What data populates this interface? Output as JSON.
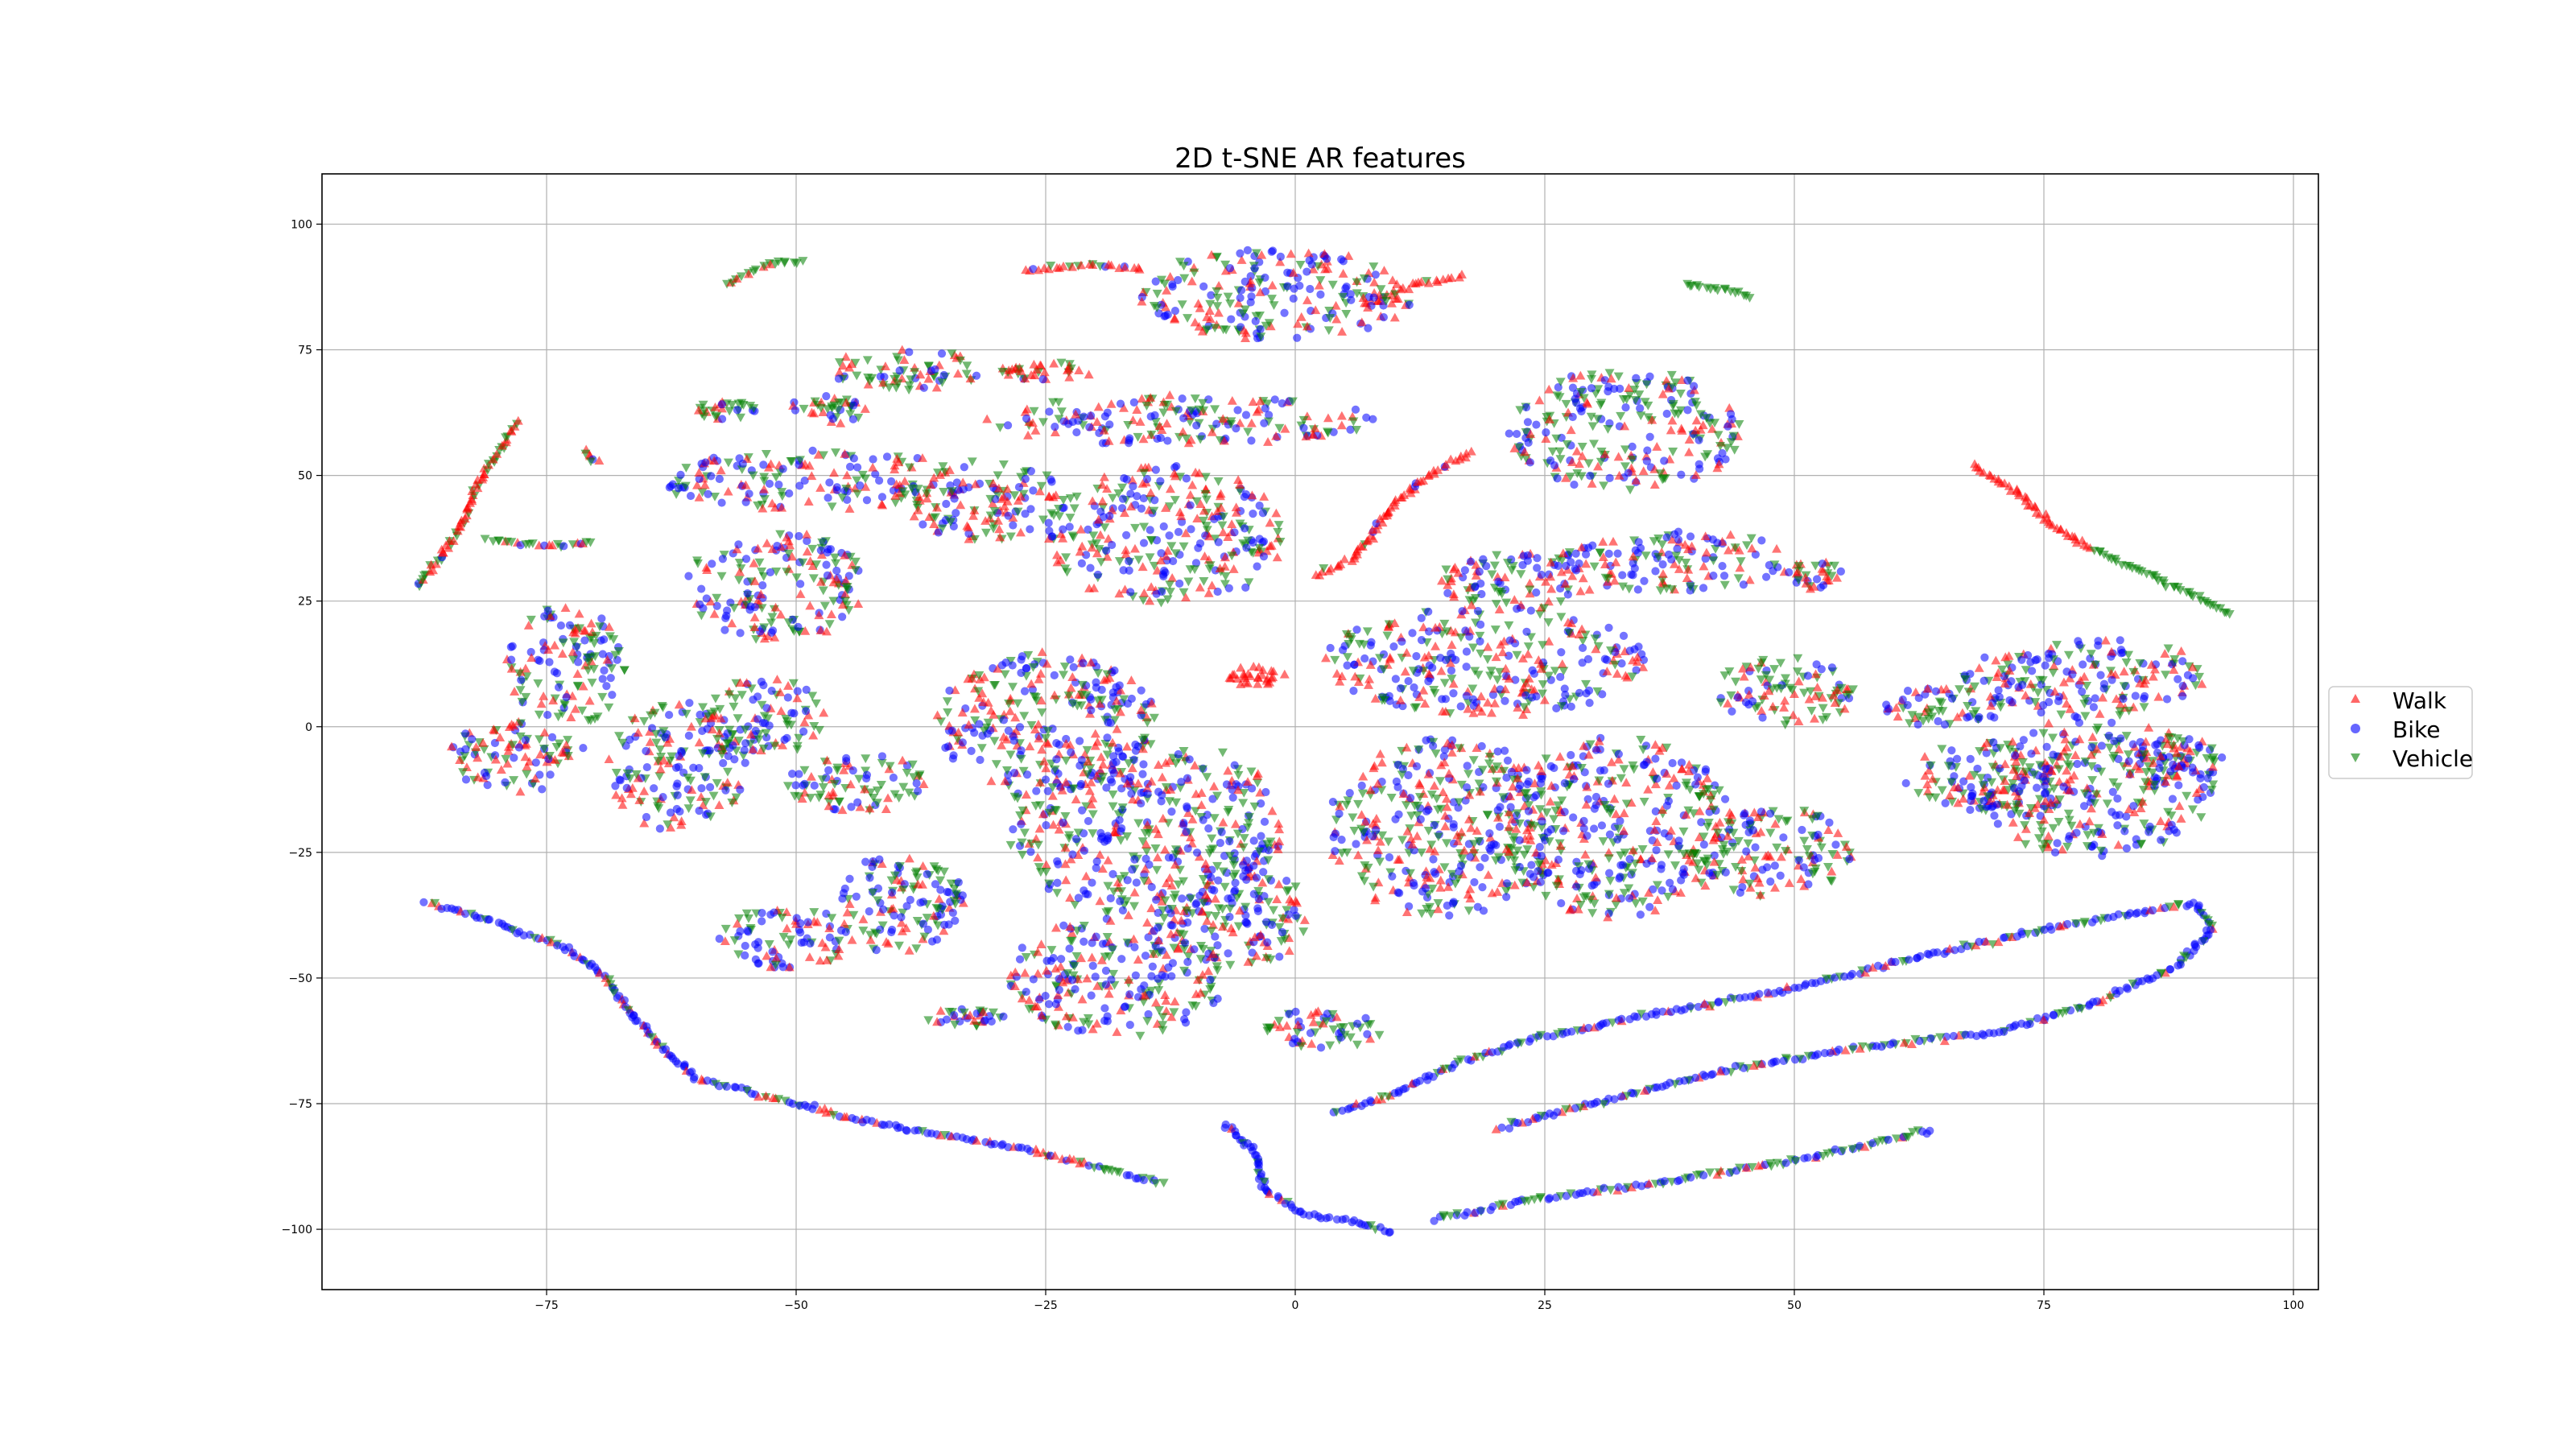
{
  "chart_data": {
    "type": "scatter",
    "title": "2D t-SNE AR features",
    "xlabel": "",
    "ylabel": "",
    "xlim": [
      -97.5,
      102.5
    ],
    "ylim": [
      -112,
      110
    ],
    "x_ticks": [
      -75,
      -50,
      -25,
      0,
      25,
      50,
      75,
      100
    ],
    "x_tick_labels": [
      "−75",
      "−50",
      "−25",
      "0",
      "25",
      "50",
      "75",
      "100"
    ],
    "y_ticks": [
      100,
      75,
      50,
      25,
      0,
      -25,
      -50,
      -75,
      -100
    ],
    "y_tick_labels": [
      "100",
      "75",
      "50",
      "25",
      "0",
      "−25",
      "−50",
      "−75",
      "−100"
    ],
    "grid": true,
    "legend_placement": "center-right outside",
    "series": [
      {
        "name": "Walk",
        "marker": "triangle-up",
        "color": "#ff0000"
      },
      {
        "name": "Bike",
        "marker": "circle",
        "color": "#0000ff"
      },
      {
        "name": "Vehicle",
        "marker": "triangle-down",
        "color": "#008000"
      }
    ],
    "curves": [
      {
        "pts": [
          [
            -87,
            -35
          ],
          [
            -80,
            -39
          ],
          [
            -73,
            -44
          ],
          [
            -69,
            -50
          ],
          [
            -67,
            -56
          ],
          [
            -64,
            -63
          ],
          [
            -60,
            -70
          ],
          [
            -52,
            -74
          ],
          [
            -44,
            -78
          ],
          [
            -36,
            -81
          ],
          [
            -27,
            -84
          ],
          [
            -19,
            -88
          ],
          [
            -13,
            -91
          ]
        ],
        "mix": [
          0.2,
          0.65,
          0.15
        ]
      },
      {
        "pts": [
          [
            -7,
            -79
          ],
          [
            -4,
            -85
          ],
          [
            -3,
            -92
          ],
          [
            1,
            -97
          ],
          [
            7,
            -99
          ],
          [
            10,
            -101
          ]
        ],
        "mix": [
          0.05,
          0.85,
          0.1
        ]
      },
      {
        "pts": [
          [
            4,
            -77
          ],
          [
            10,
            -73
          ],
          [
            16,
            -67
          ],
          [
            24,
            -62
          ],
          [
            36,
            -57
          ],
          [
            48,
            -53
          ],
          [
            62,
            -46
          ],
          [
            76,
            -40
          ],
          [
            90,
            -35
          ],
          [
            92,
            -40
          ],
          [
            88,
            -48
          ],
          [
            80,
            -55
          ],
          [
            70,
            -61
          ],
          [
            56,
            -64
          ],
          [
            44,
            -68
          ],
          [
            32,
            -74
          ],
          [
            20,
            -80
          ]
        ],
        "mix": [
          0.15,
          0.6,
          0.25
        ]
      },
      {
        "pts": [
          [
            14,
            -98
          ],
          [
            24,
            -94
          ],
          [
            36,
            -91
          ],
          [
            48,
            -87
          ],
          [
            56,
            -84
          ],
          [
            64,
            -80
          ]
        ],
        "mix": [
          0.1,
          0.5,
          0.4
        ]
      },
      {
        "pts": [
          [
            -88,
            28
          ],
          [
            -84,
            38
          ],
          [
            -82,
            48
          ],
          [
            -79,
            57
          ],
          [
            -78,
            61
          ]
        ],
        "mix": [
          0.6,
          0.05,
          0.35
        ]
      },
      {
        "pts": [
          [
            2,
            30
          ],
          [
            6,
            34
          ],
          [
            9,
            42
          ],
          [
            12,
            48
          ],
          [
            14,
            51
          ],
          [
            18,
            55
          ]
        ],
        "mix": [
          0.9,
          0.05,
          0.05
        ]
      },
      {
        "pts": [
          [
            -27,
            91
          ],
          [
            -20,
            92
          ],
          [
            -15,
            91
          ]
        ],
        "mix": [
          0.85,
          0.05,
          0.1
        ]
      },
      {
        "pts": [
          [
            7,
            84
          ],
          [
            12,
            88
          ],
          [
            17,
            90
          ]
        ],
        "mix": [
          0.85,
          0.05,
          0.1
        ]
      },
      {
        "pts": [
          [
            39,
            88
          ],
          [
            43,
            87
          ],
          [
            46,
            85
          ]
        ],
        "mix": [
          0,
          0,
          1
        ]
      },
      {
        "pts": [
          [
            68,
            52
          ],
          [
            72,
            47
          ],
          [
            76,
            40
          ],
          [
            80,
            35
          ]
        ],
        "mix": [
          1,
          0,
          0
        ]
      },
      {
        "pts": [
          [
            80,
            35
          ],
          [
            86,
            30
          ],
          [
            91,
            25
          ],
          [
            94,
            22
          ]
        ],
        "mix": [
          0,
          0,
          1
        ]
      },
      {
        "pts": [
          [
            -57,
            88
          ],
          [
            -53,
            92
          ],
          [
            -49,
            93
          ]
        ],
        "mix": [
          0.3,
          0,
          0.7
        ]
      },
      {
        "pts": [
          [
            -81,
            37
          ],
          [
            -74,
            36
          ],
          [
            -70,
            37
          ]
        ],
        "mix": [
          0.3,
          0.1,
          0.6
        ]
      },
      {
        "pts": [
          [
            -71,
            55
          ],
          [
            -70,
            52
          ]
        ],
        "mix": [
          0.3,
          0.1,
          0.6
        ]
      }
    ],
    "clusters": [
      {
        "center": [
          -2,
          86
        ],
        "r": [
          14,
          9
        ],
        "mix": [
          0.35,
          0.35,
          0.3
        ]
      },
      {
        "center": [
          -39,
          71
        ],
        "r": [
          8,
          4
        ],
        "mix": [
          0.35,
          0.2,
          0.45
        ]
      },
      {
        "center": [
          -25,
          71
        ],
        "r": [
          5,
          2
        ],
        "mix": [
          0.6,
          0.1,
          0.3
        ]
      },
      {
        "center": [
          -47,
          63
        ],
        "r": [
          4,
          3
        ],
        "mix": [
          0.3,
          0.2,
          0.5
        ]
      },
      {
        "center": [
          -57,
          63
        ],
        "r": [
          3,
          2
        ],
        "mix": [
          0.2,
          0.2,
          0.6
        ]
      },
      {
        "center": [
          -12,
          61
        ],
        "r": [
          20,
          5
        ],
        "mix": [
          0.35,
          0.35,
          0.3
        ]
      },
      {
        "center": [
          -48,
          49
        ],
        "r": [
          16,
          6
        ],
        "mix": [
          0.35,
          0.35,
          0.3
        ]
      },
      {
        "center": [
          -31,
          45
        ],
        "r": [
          8,
          8
        ],
        "mix": [
          0.4,
          0.3,
          0.3
        ]
      },
      {
        "center": [
          -13,
          38
        ],
        "r": [
          12,
          14
        ],
        "mix": [
          0.35,
          0.3,
          0.35
        ]
      },
      {
        "center": [
          -52,
          28
        ],
        "r": [
          9,
          11
        ],
        "mix": [
          0.3,
          0.35,
          0.35
        ]
      },
      {
        "center": [
          -73,
          12
        ],
        "r": [
          6,
          12
        ],
        "mix": [
          0.3,
          0.3,
          0.4
        ]
      },
      {
        "center": [
          -78,
          -6
        ],
        "r": [
          7,
          7
        ],
        "mix": [
          0.3,
          0.35,
          0.35
        ]
      },
      {
        "center": [
          -62,
          -8
        ],
        "r": [
          7,
          13
        ],
        "mix": [
          0.3,
          0.35,
          0.35
        ]
      },
      {
        "center": [
          -53,
          2
        ],
        "r": [
          6,
          8
        ],
        "mix": [
          0.3,
          0.35,
          0.35
        ]
      },
      {
        "center": [
          -44,
          -11
        ],
        "r": [
          7,
          6
        ],
        "mix": [
          0.3,
          0.35,
          0.35
        ]
      },
      {
        "center": [
          -51,
          -42
        ],
        "r": [
          7,
          6
        ],
        "mix": [
          0.3,
          0.35,
          0.35
        ]
      },
      {
        "center": [
          -40,
          -35
        ],
        "r": [
          7,
          10
        ],
        "mix": [
          0.3,
          0.35,
          0.35
        ]
      },
      {
        "center": [
          -33,
          -58
        ],
        "r": [
          4,
          2
        ],
        "mix": [
          0.3,
          0.35,
          0.35
        ]
      },
      {
        "center": [
          -25,
          1
        ],
        "r": [
          11,
          14
        ],
        "mix": [
          0.35,
          0.35,
          0.3
        ]
      },
      {
        "center": [
          -15,
          -20
        ],
        "r": [
          14,
          18
        ],
        "mix": [
          0.3,
          0.35,
          0.35
        ]
      },
      {
        "center": [
          -18,
          -50
        ],
        "r": [
          11,
          12
        ],
        "mix": [
          0.3,
          0.35,
          0.35
        ]
      },
      {
        "center": [
          -6,
          -38
        ],
        "r": [
          8,
          10
        ],
        "mix": [
          0.3,
          0.35,
          0.35
        ]
      },
      {
        "center": [
          3,
          -60
        ],
        "r": [
          6,
          4
        ],
        "mix": [
          0.3,
          0.35,
          0.35
        ]
      },
      {
        "center": [
          -4,
          10
        ],
        "r": [
          3,
          2
        ],
        "mix": [
          1,
          0,
          0
        ]
      },
      {
        "center": [
          19,
          13
        ],
        "r": [
          16,
          11
        ],
        "mix": [
          0.3,
          0.4,
          0.3
        ]
      },
      {
        "center": [
          22,
          29
        ],
        "r": [
          8,
          6
        ],
        "mix": [
          0.3,
          0.35,
          0.35
        ]
      },
      {
        "center": [
          33,
          59
        ],
        "r": [
          12,
          12
        ],
        "mix": [
          0.3,
          0.35,
          0.35
        ]
      },
      {
        "center": [
          38,
          33
        ],
        "r": [
          12,
          6
        ],
        "mix": [
          0.3,
          0.35,
          0.35
        ]
      },
      {
        "center": [
          52,
          30
        ],
        "r": [
          3,
          3
        ],
        "mix": [
          0.3,
          0.3,
          0.4
        ]
      },
      {
        "center": [
          49,
          7
        ],
        "r": [
          7,
          7
        ],
        "mix": [
          0.3,
          0.3,
          0.4
        ]
      },
      {
        "center": [
          15,
          -20
        ],
        "r": [
          12,
          18
        ],
        "mix": [
          0.3,
          0.35,
          0.35
        ]
      },
      {
        "center": [
          32,
          -20
        ],
        "r": [
          12,
          18
        ],
        "mix": [
          0.3,
          0.35,
          0.35
        ]
      },
      {
        "center": [
          48,
          -25
        ],
        "r": [
          8,
          9
        ],
        "mix": [
          0.3,
          0.35,
          0.35
        ]
      },
      {
        "center": [
          79,
          10
        ],
        "r": [
          13,
          8
        ],
        "mix": [
          0.3,
          0.35,
          0.35
        ]
      },
      {
        "center": [
          65,
          4
        ],
        "r": [
          6,
          4
        ],
        "mix": [
          0.3,
          0.35,
          0.35
        ]
      },
      {
        "center": [
          80,
          -12
        ],
        "r": [
          12,
          14
        ],
        "mix": [
          0.3,
          0.35,
          0.35
        ]
      },
      {
        "center": [
          70,
          -10
        ],
        "r": [
          9,
          7
        ],
        "mix": [
          0.3,
          0.35,
          0.35
        ]
      },
      {
        "center": [
          88,
          -7
        ],
        "r": [
          5,
          5
        ],
        "mix": [
          0.3,
          0.35,
          0.35
        ]
      }
    ]
  }
}
